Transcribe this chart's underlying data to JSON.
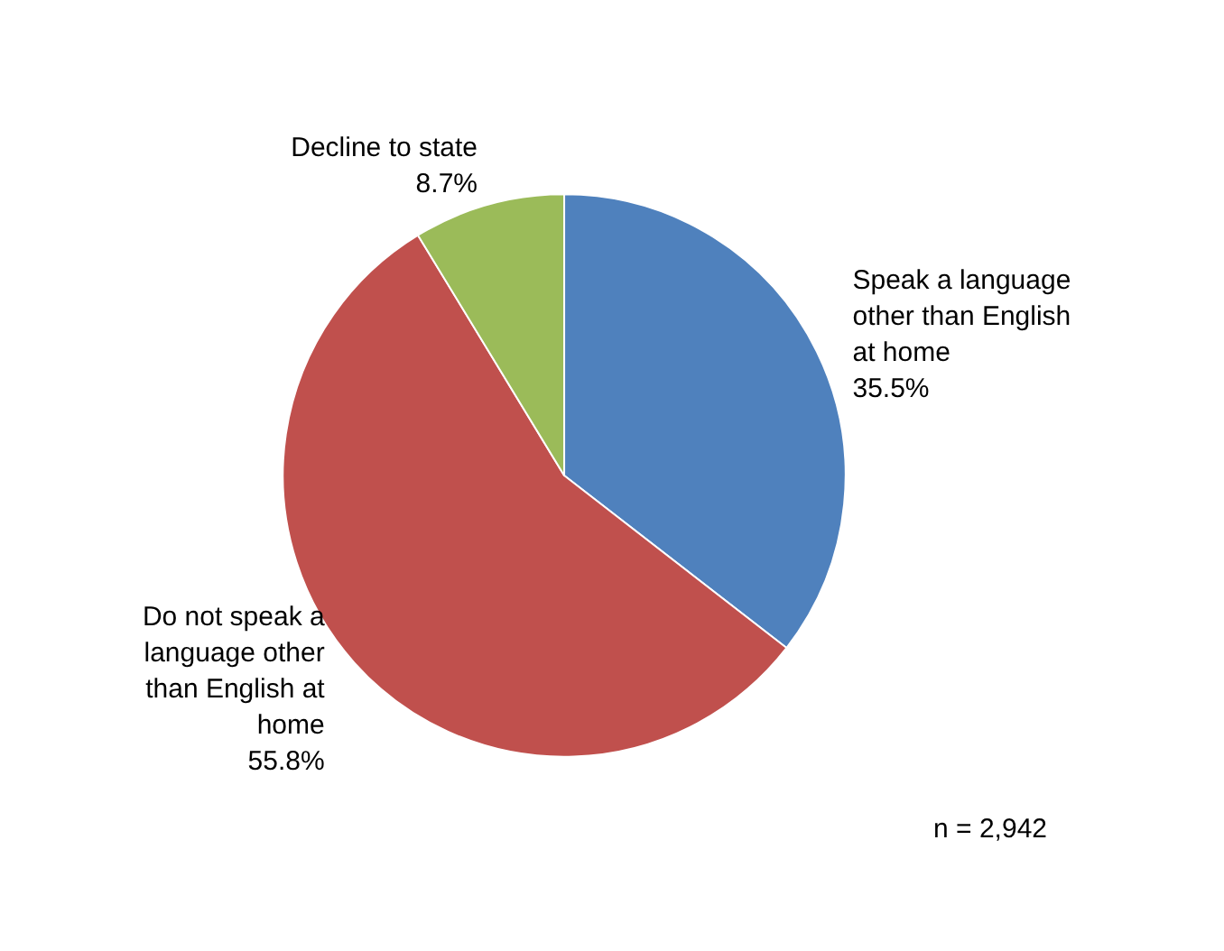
{
  "chart_data": {
    "type": "pie",
    "categories": [
      "Speak a language\nother than English\nat home",
      "Do not speak a\nlanguage other\nthan English at\nhome",
      "Decline to state"
    ],
    "values": [
      35.5,
      55.8,
      8.7
    ],
    "value_labels": [
      "35.5%",
      "55.8%",
      "8.7%"
    ],
    "colors": [
      "#4f81bd",
      "#c0504d",
      "#9bbb59"
    ],
    "annotations": [
      "n = 2,942"
    ],
    "legend": false
  }
}
